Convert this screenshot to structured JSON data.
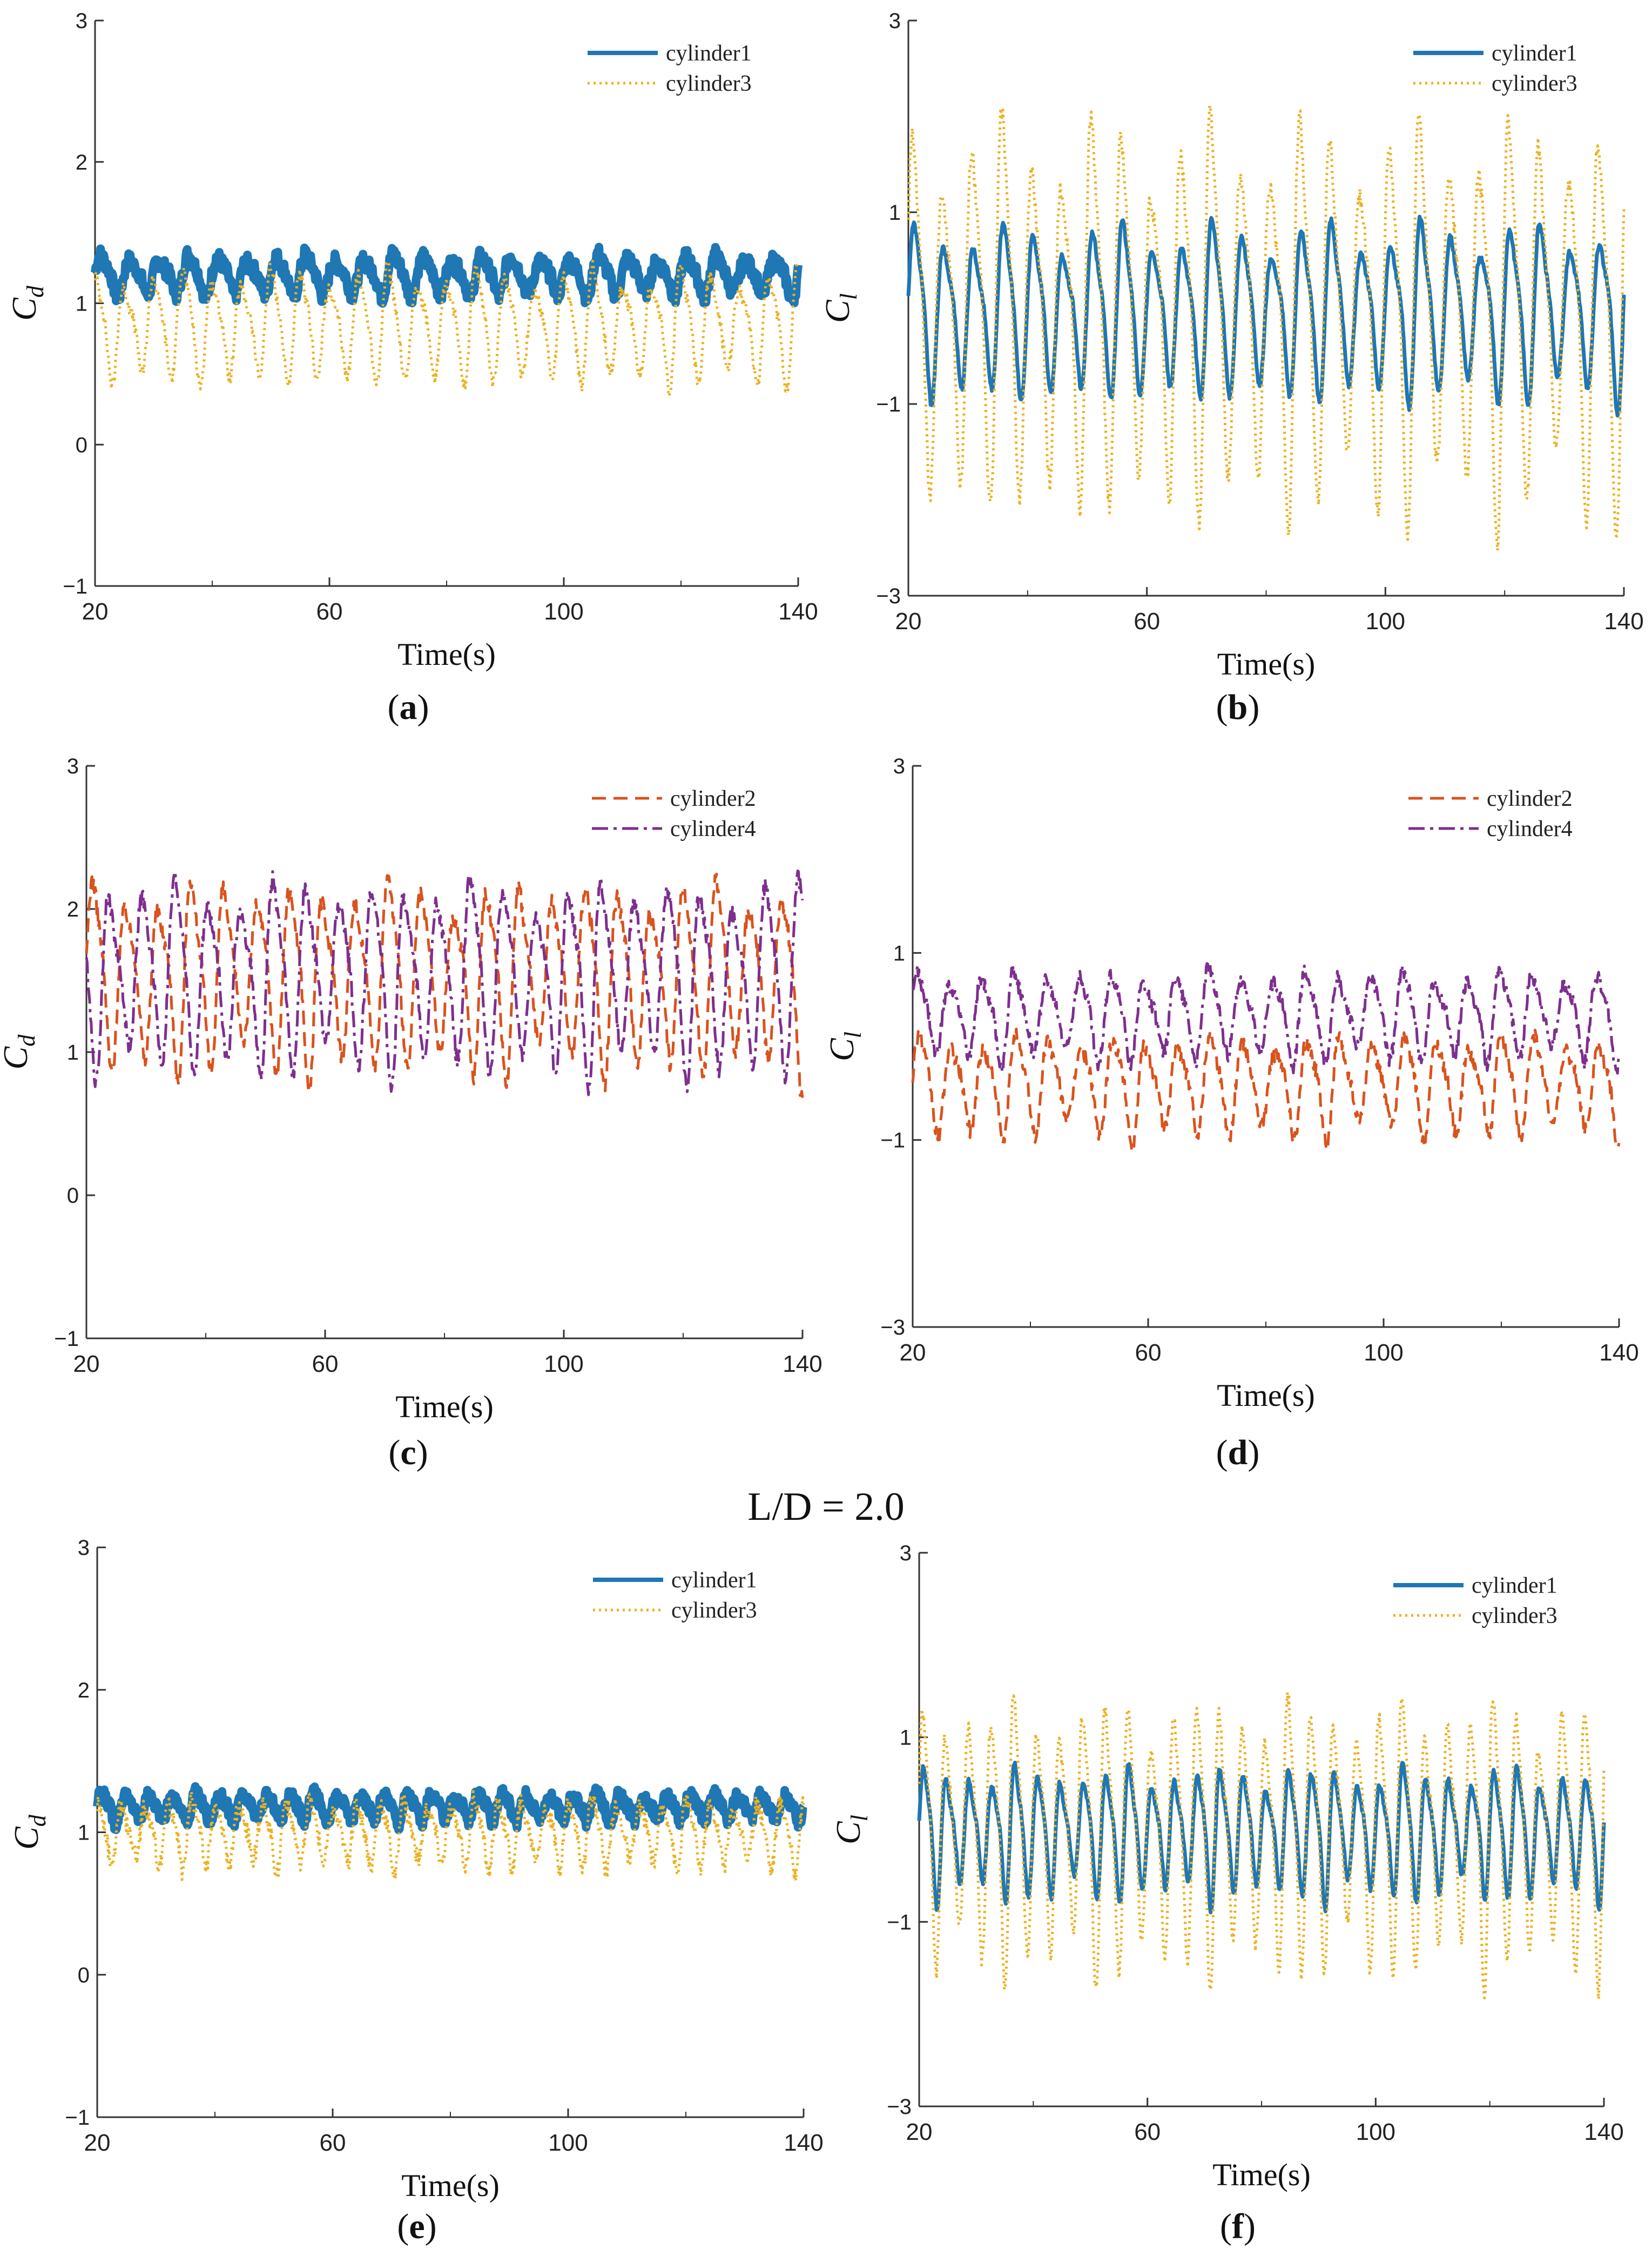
{
  "figure_caption": "L/D = 2.0",
  "colors": {
    "cylinder1": "#1f77b4",
    "cylinder2": "#d9531e",
    "cylinder3": "#edb120",
    "cylinder4": "#7e2f8e",
    "axis": "#333333"
  },
  "chart_data": [
    {
      "id": "a",
      "label": "a",
      "type": "line",
      "xlabel": "Time(s)",
      "ylabel": "Cd",
      "ylabel_sub": "d",
      "xlim": [
        20,
        140
      ],
      "ylim": [
        -1,
        3
      ],
      "xticks": [
        20,
        60,
        100,
        140
      ],
      "yticks": [
        -1,
        0,
        1,
        2,
        3
      ],
      "legend_position": "top-right",
      "series": [
        {
          "name": "cylinder1",
          "color": "#1f77b4",
          "style": "solid",
          "mean": 1.2,
          "amp": 0.12,
          "period": 5.0,
          "noise": 0.06,
          "phase": 0.0,
          "thick": 1.0
        },
        {
          "name": "cylinder3",
          "color": "#edb120",
          "style": "dotted",
          "mean": 0.85,
          "amp": 0.33,
          "period": 5.0,
          "noise": 0.05,
          "phase": 1.2,
          "thick": 0.55
        }
      ]
    },
    {
      "id": "b",
      "label": "b",
      "type": "line",
      "xlabel": "Time(s)",
      "ylabel": "Cl",
      "ylabel_sub": "l",
      "xlim": [
        20,
        140
      ],
      "ylim": [
        -3,
        3
      ],
      "xticks": [
        20,
        60,
        100,
        140
      ],
      "yticks": [
        -3,
        -1,
        1,
        3
      ],
      "legend_position": "top-right",
      "series": [
        {
          "name": "cylinder1",
          "color": "#1f77b4",
          "style": "solid",
          "mean": 0.0,
          "amp": 0.75,
          "period": 5.0,
          "noise": 0.03,
          "phase": 0.0,
          "thick": 0.55
        },
        {
          "name": "cylinder3",
          "color": "#edb120",
          "style": "dotted",
          "mean": 0.0,
          "amp": 1.65,
          "period": 5.0,
          "noise": 0.1,
          "phase": 0.3,
          "thick": 0.55
        }
      ]
    },
    {
      "id": "c",
      "label": "c",
      "type": "line",
      "xlabel": "Time(s)",
      "ylabel": "Cd",
      "ylabel_sub": "d",
      "xlim": [
        20,
        140
      ],
      "ylim": [
        -1,
        3
      ],
      "xticks": [
        20,
        60,
        100,
        140
      ],
      "yticks": [
        -1,
        0,
        1,
        2,
        3
      ],
      "legend_position": "top-right",
      "series": [
        {
          "name": "cylinder2",
          "color": "#d9531e",
          "style": "dashed",
          "mean": 1.55,
          "amp": 0.55,
          "period": 5.5,
          "noise": 0.06,
          "phase": 0.0,
          "thick": 0.55
        },
        {
          "name": "cylinder4",
          "color": "#7e2f8e",
          "style": "dashdot",
          "mean": 1.55,
          "amp": 0.55,
          "period": 5.5,
          "noise": 0.06,
          "phase": 3.1,
          "thick": 0.55
        }
      ]
    },
    {
      "id": "d",
      "label": "d",
      "type": "line",
      "xlabel": "Time(s)",
      "ylabel": "Cl",
      "ylabel_sub": "l",
      "xlim": [
        20,
        140
      ],
      "ylim": [
        -3,
        3
      ],
      "xticks": [
        20,
        60,
        100,
        140
      ],
      "yticks": [
        -3,
        -1,
        1,
        3
      ],
      "legend_position": "top-right",
      "series": [
        {
          "name": "cylinder2",
          "color": "#d9531e",
          "style": "dashed",
          "mean": -0.4,
          "amp": 0.45,
          "period": 5.5,
          "noise": 0.08,
          "phase": 0.0,
          "thick": 0.55
        },
        {
          "name": "cylinder4",
          "color": "#7e2f8e",
          "style": "dashdot",
          "mean": 0.35,
          "amp": 0.4,
          "period": 5.5,
          "noise": 0.08,
          "phase": 0.3,
          "thick": 0.55
        }
      ]
    },
    {
      "id": "e",
      "label": "e",
      "type": "line",
      "xlabel": "Time(s)",
      "ylabel": "Cd",
      "ylabel_sub": "d",
      "xlim": [
        20,
        140
      ],
      "ylim": [
        -1,
        3
      ],
      "xticks": [
        20,
        60,
        100,
        140
      ],
      "yticks": [
        -1,
        0,
        1,
        2,
        3
      ],
      "legend_position": "top-right",
      "series": [
        {
          "name": "cylinder1",
          "color": "#1f77b4",
          "style": "solid",
          "mean": 1.18,
          "amp": 0.08,
          "period": 4.0,
          "noise": 0.05,
          "phase": 0.0,
          "thick": 0.9
        },
        {
          "name": "cylinder3",
          "color": "#edb120",
          "style": "dotted",
          "mean": 1.0,
          "amp": 0.2,
          "period": 4.0,
          "noise": 0.07,
          "phase": 1.0,
          "thick": 0.55
        }
      ]
    },
    {
      "id": "f",
      "label": "f",
      "type": "line",
      "xlabel": "Time(s)",
      "ylabel": "Cl",
      "ylabel_sub": "l",
      "xlim": [
        20,
        140
      ],
      "ylim": [
        -3,
        3
      ],
      "xticks": [
        20,
        60,
        100,
        140
      ],
      "yticks": [
        -3,
        -1,
        1,
        3
      ],
      "legend_position": "top-right",
      "series": [
        {
          "name": "cylinder1",
          "color": "#1f77b4",
          "style": "solid",
          "mean": 0.0,
          "amp": 0.58,
          "period": 4.0,
          "noise": 0.03,
          "phase": 0.0,
          "thick": 0.55
        },
        {
          "name": "cylinder3",
          "color": "#edb120",
          "style": "dotted",
          "mean": 0.0,
          "amp": 1.2,
          "period": 4.0,
          "noise": 0.08,
          "phase": 0.2,
          "thick": 0.55
        }
      ]
    }
  ]
}
